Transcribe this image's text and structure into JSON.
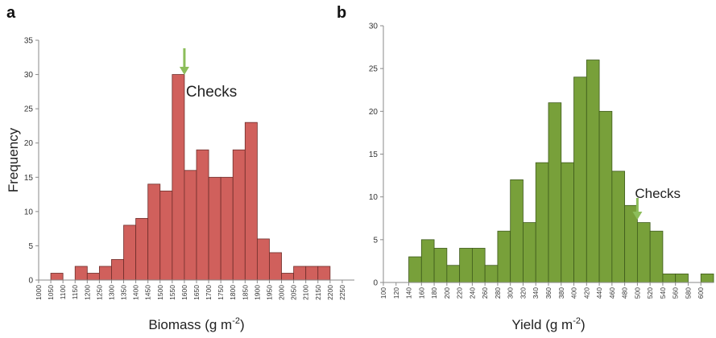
{
  "chart_data": [
    {
      "type": "bar",
      "panel_label": "a",
      "ylabel": "Frequency",
      "xlabel": "Biomass (g m",
      "xlabel_sup": "-2",
      "xlabel_end": ")",
      "ylim": [
        0,
        35
      ],
      "yticks": [
        "0",
        "5",
        "10",
        "15",
        "20",
        "25",
        "30",
        "35"
      ],
      "categories": [
        "1000",
        "1050",
        "1100",
        "1150",
        "1200",
        "1250",
        "1300",
        "1350",
        "1400",
        "1450",
        "1500",
        "1550",
        "1600",
        "1650",
        "1700",
        "1750",
        "1800",
        "1850",
        "1900",
        "1950",
        "2000",
        "2050",
        "2100",
        "2150",
        "2200",
        "2250"
      ],
      "values": [
        0,
        1,
        0,
        2,
        1,
        2,
        3,
        8,
        9,
        14,
        13,
        30,
        16,
        19,
        15,
        15,
        19,
        23,
        6,
        4,
        1,
        2,
        2,
        2,
        0,
        0
      ],
      "bar_color": "#d0605c",
      "bar_edge": "#6e2d2a",
      "annotation": {
        "text": "Checks",
        "at": "1600",
        "arrow_color": "#8cbd5a"
      }
    },
    {
      "type": "bar",
      "panel_label": "b",
      "ylabel": "",
      "xlabel": "Yield (g m",
      "xlabel_sup": "-2",
      "xlabel_end": ")",
      "ylim": [
        0,
        30
      ],
      "yticks": [
        "0",
        "5",
        "10",
        "15",
        "20",
        "25",
        "30"
      ],
      "categories": [
        "100",
        "120",
        "140",
        "160",
        "180",
        "200",
        "220",
        "240",
        "260",
        "280",
        "300",
        "320",
        "340",
        "360",
        "380",
        "400",
        "420",
        "440",
        "460",
        "480",
        "500",
        "520",
        "540",
        "560",
        "580",
        "600"
      ],
      "values": [
        0,
        0,
        3,
        5,
        4,
        2,
        4,
        4,
        2,
        6,
        12,
        7,
        14,
        21,
        14,
        24,
        26,
        20,
        13,
        9,
        7,
        6,
        1,
        1,
        0,
        1
      ],
      "bar_color": "#78a03a",
      "bar_edge": "#3e5a1c",
      "annotation": {
        "text": "Checks",
        "at": "500",
        "arrow_color": "#8cbd5a"
      }
    }
  ]
}
